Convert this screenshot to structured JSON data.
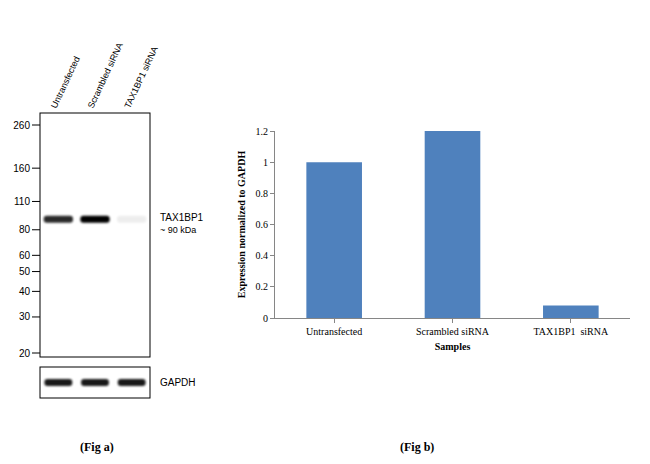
{
  "chart_data": {
    "type": "bar",
    "categories": [
      "Untransfected",
      "Scrambled siRNA",
      "TAX1BP1  siRNA"
    ],
    "values": [
      1,
      1.2,
      0.08
    ],
    "color": "#4f81bd",
    "ylim": [
      0,
      1.2
    ],
    "yticks": [
      0,
      0.2,
      0.4,
      0.6,
      0.8,
      1,
      1.2
    ],
    "x_label": "Samples",
    "y_label": "Expression normalized to GAPDH",
    "grid": false,
    "caption": "(Fig b)"
  },
  "blot": {
    "lanes": [
      {
        "label": "Untransfected",
        "target": 1,
        "loading": 1
      },
      {
        "label": "Scrambled siRNA",
        "target": 1.2,
        "loading": 1
      },
      {
        "label": "TAX1BP1  siRNA",
        "target": 0.08,
        "loading": 1
      }
    ],
    "markers_kda": [
      260,
      160,
      110,
      80,
      60,
      50,
      40,
      30,
      20
    ],
    "target_label": "TAX1BP1",
    "target_size_label": "~ 90  kDa",
    "target_kda": 90,
    "loading_label": "GAPDH",
    "caption": "(Fig a)"
  }
}
